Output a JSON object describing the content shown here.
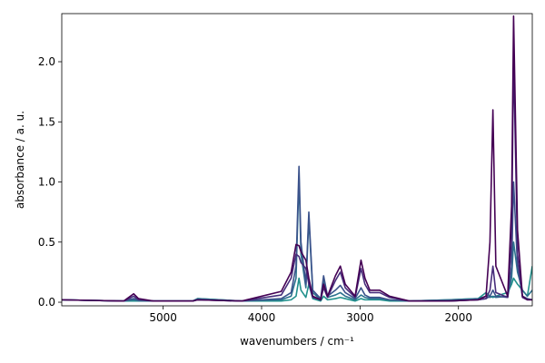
{
  "chart_data": {
    "type": "line",
    "x_label": "wavenumbers / cm⁻¹",
    "y_label": "absorbance / a. u.",
    "xlim": [
      6030,
      1250
    ],
    "ylim": [
      -0.03,
      2.4
    ],
    "xticks": [
      5000,
      4000,
      3000,
      2000
    ],
    "yticks": [
      {
        "value": 0,
        "label": "0.0"
      },
      {
        "value": 0.5,
        "label": "0.5"
      },
      {
        "value": 1,
        "label": "1.0"
      },
      {
        "value": 1.5,
        "label": "1.5"
      },
      {
        "value": 2,
        "label": "2.0"
      }
    ],
    "grid": false,
    "x": [
      6030,
      5400,
      5300,
      5250,
      5100,
      4700,
      4650,
      4200,
      3800,
      3700,
      3650,
      3620,
      3600,
      3550,
      3520,
      3480,
      3400,
      3370,
      3330,
      3250,
      3200,
      3150,
      3050,
      2990,
      2950,
      2900,
      2800,
      2700,
      2500,
      2100,
      1800,
      1720,
      1680,
      1650,
      1620,
      1500,
      1460,
      1440,
      1400,
      1350,
      1300,
      1250
    ],
    "series": [
      {
        "color": "#21918c",
        "values": [
          0.02,
          0.01,
          0.01,
          0.01,
          0.01,
          0.01,
          0.03,
          0.01,
          0.01,
          0.02,
          0.05,
          0.2,
          0.1,
          0.04,
          0.15,
          0.03,
          0.01,
          0.05,
          0.02,
          0.03,
          0.04,
          0.03,
          0.01,
          0.03,
          0.02,
          0.02,
          0.02,
          0.01,
          0.01,
          0.02,
          0.03,
          0.08,
          0.05,
          0.04,
          0.05,
          0.08,
          0.15,
          0.2,
          0.15,
          0.1,
          0.05,
          0.3
        ]
      },
      {
        "color": "#2c728e",
        "values": [
          0.02,
          0.01,
          0.02,
          0.01,
          0.01,
          0.01,
          0.03,
          0.01,
          0.02,
          0.05,
          0.2,
          1.05,
          0.4,
          0.12,
          0.7,
          0.08,
          0.02,
          0.18,
          0.04,
          0.06,
          0.08,
          0.05,
          0.02,
          0.06,
          0.04,
          0.03,
          0.03,
          0.02,
          0.01,
          0.02,
          0.03,
          0.05,
          0.04,
          0.05,
          0.04,
          0.05,
          0.2,
          0.5,
          0.25,
          0.1,
          0.05,
          0.1
        ]
      },
      {
        "color": "#3b528b",
        "values": [
          0.02,
          0.01,
          0.03,
          0.02,
          0.01,
          0.01,
          0.02,
          0.01,
          0.03,
          0.08,
          0.3,
          1.13,
          0.5,
          0.15,
          0.75,
          0.1,
          0.03,
          0.22,
          0.05,
          0.1,
          0.14,
          0.08,
          0.03,
          0.12,
          0.06,
          0.04,
          0.04,
          0.02,
          0.01,
          0.01,
          0.02,
          0.03,
          0.05,
          0.1,
          0.05,
          0.04,
          0.3,
          1.0,
          0.3,
          0.05,
          0.03,
          0.02
        ]
      },
      {
        "color": "#472d7b",
        "values": [
          0.02,
          0.01,
          0.05,
          0.02,
          0.01,
          0.01,
          0.02,
          0.01,
          0.06,
          0.2,
          0.4,
          0.38,
          0.33,
          0.28,
          0.15,
          0.04,
          0.02,
          0.12,
          0.04,
          0.18,
          0.25,
          0.12,
          0.04,
          0.28,
          0.15,
          0.08,
          0.08,
          0.04,
          0.01,
          0.01,
          0.02,
          0.03,
          0.1,
          0.3,
          0.08,
          0.04,
          0.5,
          2.06,
          0.4,
          0.04,
          0.02,
          0.02
        ]
      },
      {
        "color": "#440154",
        "values": [
          0.02,
          0.01,
          0.07,
          0.03,
          0.01,
          0.01,
          0.02,
          0.01,
          0.09,
          0.25,
          0.48,
          0.47,
          0.42,
          0.35,
          0.2,
          0.05,
          0.02,
          0.15,
          0.05,
          0.22,
          0.3,
          0.15,
          0.05,
          0.35,
          0.2,
          0.1,
          0.1,
          0.05,
          0.01,
          0.01,
          0.02,
          0.05,
          0.5,
          1.6,
          0.3,
          0.05,
          0.8,
          2.38,
          0.6,
          0.05,
          0.02,
          0.02
        ]
      }
    ]
  }
}
